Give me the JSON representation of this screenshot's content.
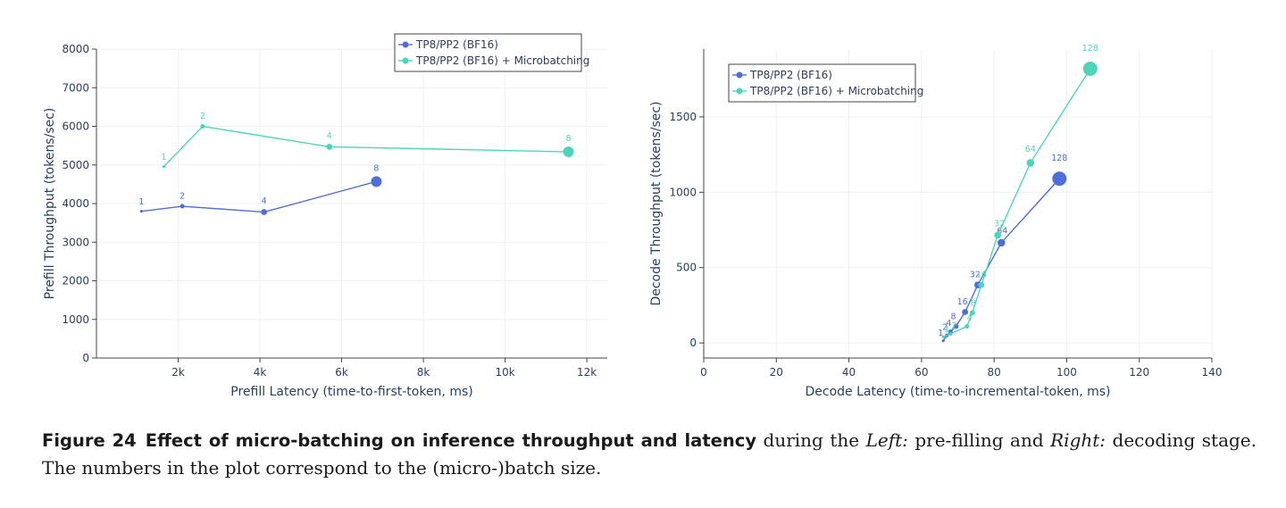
{
  "colors": {
    "series_blue": "#4f6fd8",
    "series_teal": "#4fd4bc",
    "axis_text": "#2a3f5f",
    "grid": "#eef0f4"
  },
  "chart_data": [
    {
      "type": "line",
      "title": "",
      "xlabel": "Prefill Latency (time-to-first-token, ms)",
      "ylabel": "Prefill Throughput (tokens/sec)",
      "xlim": [
        0,
        12500
      ],
      "ylim": [
        0,
        8000
      ],
      "xticks": [
        2000,
        4000,
        6000,
        8000,
        10000,
        12000
      ],
      "xtick_labels": [
        "2k",
        "4k",
        "6k",
        "8k",
        "10k",
        "12k"
      ],
      "yticks": [
        0,
        1000,
        2000,
        3000,
        4000,
        5000,
        6000,
        7000,
        8000
      ],
      "ytick_labels": [
        "0",
        "1000",
        "2000",
        "3000",
        "4000",
        "5000",
        "6000",
        "7000",
        "8000"
      ],
      "legend_position": "top-right",
      "series": [
        {
          "name": "TP8/PP2 (BF16)",
          "color": "#4f6fd8",
          "x": [
            1100,
            2100,
            4100,
            6850
          ],
          "y": [
            3800,
            3930,
            3780,
            4570
          ],
          "labels": [
            "1",
            "2",
            "4",
            "8"
          ]
        },
        {
          "name": "TP8/PP2 (BF16) + Microbatching",
          "color": "#4fd4bc",
          "x": [
            1650,
            2600,
            5700,
            11550
          ],
          "y": [
            4960,
            6000,
            5470,
            5340
          ],
          "labels": [
            "1",
            "2",
            "4",
            "8"
          ]
        }
      ]
    },
    {
      "type": "line",
      "title": "",
      "xlabel": "Decode Latency (time-to-incremental-token, ms)",
      "ylabel": "Decode Throughput (tokens/sec)",
      "xlim": [
        0,
        140
      ],
      "ylim": [
        -100,
        1950
      ],
      "xticks": [
        0,
        20,
        40,
        60,
        80,
        100,
        120,
        140
      ],
      "xtick_labels": [
        "0",
        "20",
        "40",
        "60",
        "80",
        "100",
        "120",
        "140"
      ],
      "yticks": [
        0,
        500,
        1000,
        1500
      ],
      "ytick_labels": [
        "0",
        "500",
        "1000",
        "1500"
      ],
      "legend_position": "top-left",
      "series": [
        {
          "name": "TP8/PP2 (BF16)",
          "color": "#4f6fd8",
          "x": [
            66,
            67,
            68,
            69.5,
            72,
            75.5,
            82,
            98
          ],
          "y": [
            15,
            50,
            75,
            110,
            205,
            385,
            665,
            1090
          ],
          "labels": [
            "1",
            "2",
            "4",
            "8",
            "16",
            "32",
            "64",
            "128"
          ]
        },
        {
          "name": "TP8/PP2 (BF16) + Microbatching",
          "color": "#4fd4bc",
          "x": [
            66,
            68,
            72.5,
            74,
            76.5,
            81,
            90,
            106.5
          ],
          "y": [
            40,
            60,
            110,
            200,
            385,
            715,
            1195,
            1820
          ],
          "labels": [
            "1",
            "2",
            "4",
            "8",
            "16",
            "32",
            "64",
            "128"
          ]
        }
      ]
    }
  ],
  "caption": {
    "number": "Figure 24",
    "bold_title": "Effect of micro-batching on inference throughput and latency",
    "text_1": " during the ",
    "left_label": "Left:",
    "text_2": " pre-filling and ",
    "right_label": "Right:",
    "text_3": " decoding stage. The numbers in the plot correspond to the (micro-)batch size."
  }
}
